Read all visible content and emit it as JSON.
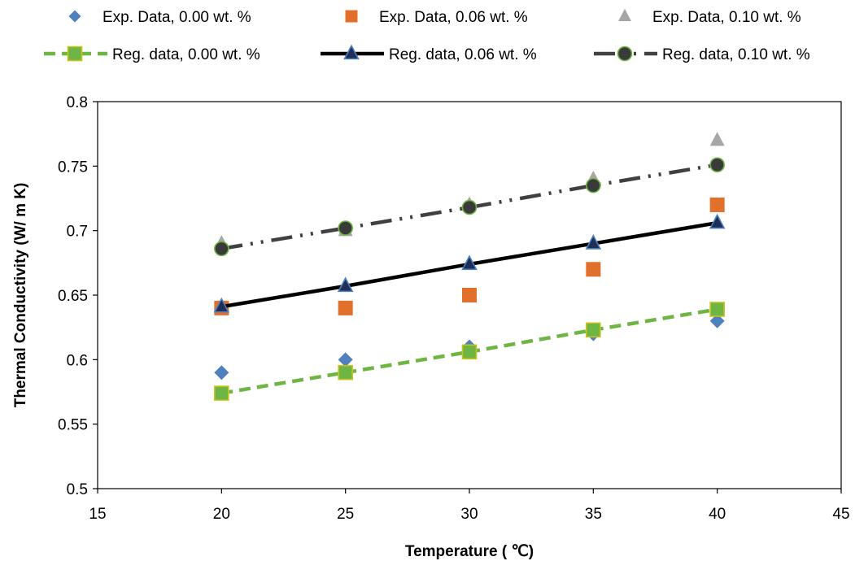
{
  "chart_data": {
    "type": "scatter",
    "title": "",
    "xlabel": "Temperature ( ℃)",
    "ylabel": "Thermal Conductivity (W/ m K)",
    "xlim": [
      15,
      45
    ],
    "ylim": [
      0.5,
      0.8
    ],
    "xticks": [
      15,
      20,
      25,
      30,
      35,
      40,
      45
    ],
    "yticks": [
      0.5,
      0.55,
      0.6,
      0.65,
      0.7,
      0.75,
      0.8
    ],
    "xtick_labels": [
      "15",
      "20",
      "25",
      "30",
      "35",
      "40",
      "45"
    ],
    "ytick_labels": [
      "0.5",
      "0.55",
      "0.6",
      "0.65",
      "0.7",
      "0.75",
      "0.8"
    ],
    "grid": false,
    "legend_position": "top",
    "series": [
      {
        "name": "Exp. Data, 0.00 wt. %",
        "kind": "markers",
        "marker": "diamond",
        "color": "#4f81bd",
        "x": [
          20,
          25,
          30,
          35,
          40
        ],
        "y": [
          0.59,
          0.6,
          0.61,
          0.62,
          0.63
        ]
      },
      {
        "name": "Exp. Data, 0.06 wt. %",
        "kind": "markers",
        "marker": "square",
        "color": "#e0702c",
        "x": [
          20,
          25,
          30,
          35,
          40
        ],
        "y": [
          0.64,
          0.64,
          0.65,
          0.67,
          0.72
        ]
      },
      {
        "name": "Exp. Data, 0.10 wt. %",
        "kind": "markers",
        "marker": "triangle",
        "color": "#a6a6a6",
        "x": [
          20,
          25,
          30,
          35,
          40
        ],
        "y": [
          0.69,
          0.7,
          0.72,
          0.74,
          0.77
        ]
      },
      {
        "name": "Reg. data, 0.00 wt. %",
        "kind": "line",
        "marker": "square",
        "line_style": "dash",
        "color": "#6fb544",
        "marker_fill": "#6fb544",
        "marker_edge": "#c9c21d",
        "x": [
          20,
          25,
          30,
          35,
          40
        ],
        "y": [
          0.574,
          0.59,
          0.606,
          0.623,
          0.639
        ]
      },
      {
        "name": "Reg. data, 0.06 wt. %",
        "kind": "line",
        "marker": "triangle",
        "line_style": "solid",
        "color": "#000000",
        "marker_fill": "#1f2d59",
        "marker_edge": "#4f81bd",
        "x": [
          20,
          25,
          30,
          35,
          40
        ],
        "y": [
          0.641,
          0.657,
          0.674,
          0.69,
          0.706
        ]
      },
      {
        "name": "Reg. data, 0.10 wt. %",
        "kind": "line",
        "marker": "circle",
        "line_style": "dash-dot-dot",
        "color": "#404040",
        "marker_fill": "#3a3a3a",
        "marker_edge": "#6fb544",
        "x": [
          20,
          25,
          30,
          35,
          40
        ],
        "y": [
          0.686,
          0.702,
          0.718,
          0.735,
          0.751
        ]
      }
    ]
  }
}
